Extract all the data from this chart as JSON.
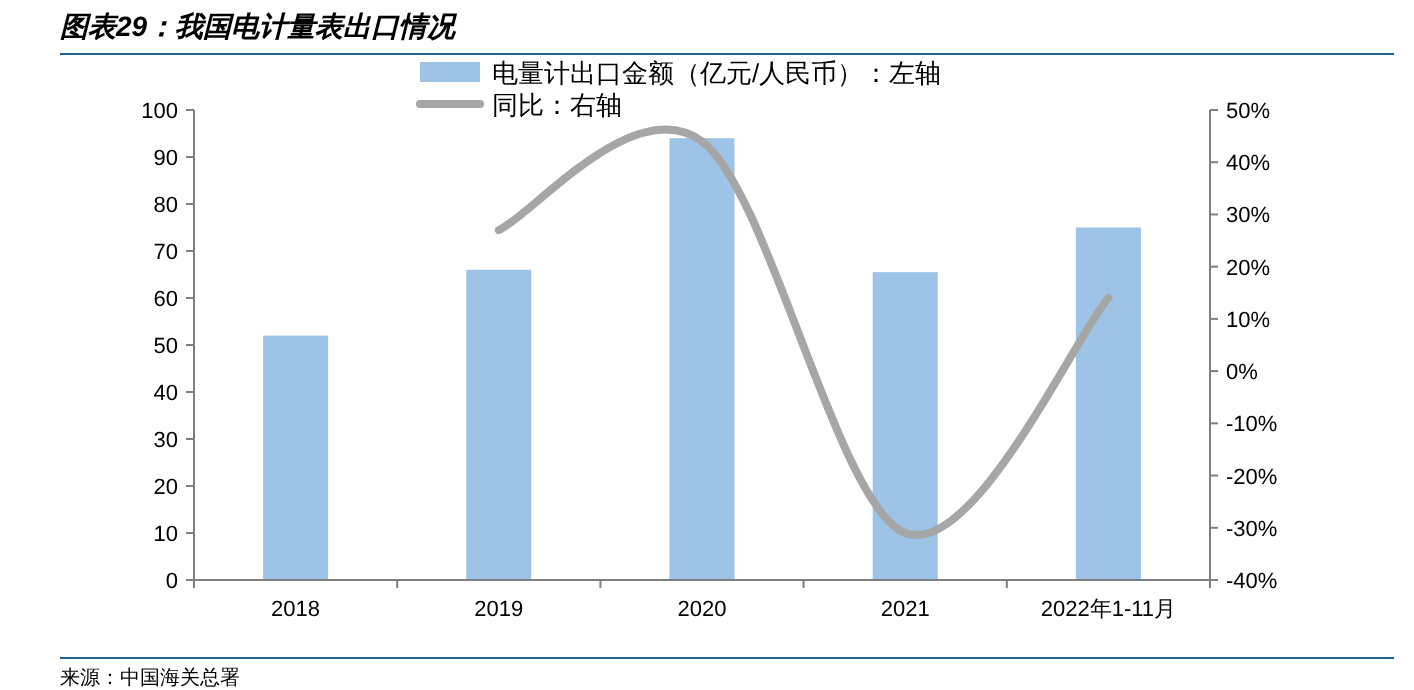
{
  "chart_data": {
    "type": "bar",
    "title": "图表29：我国电计量表出口情况",
    "categories": [
      "2018",
      "2019",
      "2020",
      "2021",
      "2022年1-11月"
    ],
    "series": [
      {
        "name": "电量计出口金额（亿元/人民币）：左轴",
        "color": "#9dc3e6",
        "values": [
          52,
          66,
          94,
          65.5,
          75
        ]
      },
      {
        "name": "同比：右轴",
        "type": "line",
        "axis": "y2",
        "color": "#a6a6a6",
        "values": [
          null,
          27,
          44,
          -31,
          14
        ]
      }
    ],
    "ylim": [
      0,
      100
    ],
    "yticks": [
      0,
      10,
      20,
      30,
      40,
      50,
      60,
      70,
      80,
      90,
      100
    ],
    "y2lim": [
      -40,
      50
    ],
    "y2ticks": [
      {
        "value": -40,
        "label": "-40%"
      },
      {
        "value": -30,
        "label": "-30%"
      },
      {
        "value": -20,
        "label": "-20%"
      },
      {
        "value": -10,
        "label": "-10%"
      },
      {
        "value": 0,
        "label": "0%"
      },
      {
        "value": 10,
        "label": "10%"
      },
      {
        "value": 20,
        "label": "20%"
      },
      {
        "value": 30,
        "label": "30%"
      },
      {
        "value": 40,
        "label": "40%"
      },
      {
        "value": 50,
        "label": "50%"
      }
    ],
    "legend": "top",
    "grid": false,
    "annotations": [
      "来源：中国海关总署"
    ]
  }
}
